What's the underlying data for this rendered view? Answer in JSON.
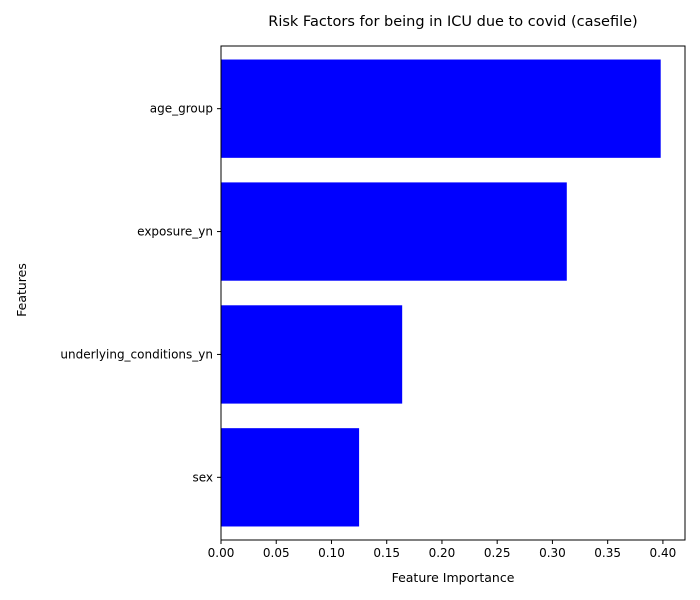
{
  "chart_data": {
    "type": "bar",
    "orientation": "horizontal",
    "title": "Risk Factors for being in ICU due to covid (casefile)",
    "xlabel": "Feature Importance",
    "ylabel": "Features",
    "categories": [
      "age_group",
      "exposure_yn",
      "underlying_conditions_yn",
      "sex"
    ],
    "values": [
      0.398,
      0.313,
      0.164,
      0.125
    ],
    "xlim": [
      0,
      0.42
    ],
    "xticks": [
      0.0,
      0.05,
      0.1,
      0.15,
      0.2,
      0.25,
      0.3,
      0.35,
      0.4
    ],
    "xtick_labels": [
      "0.00",
      "0.05",
      "0.10",
      "0.15",
      "0.20",
      "0.25",
      "0.30",
      "0.35",
      "0.40"
    ],
    "grid": false,
    "bar_color": "#0000ff"
  }
}
